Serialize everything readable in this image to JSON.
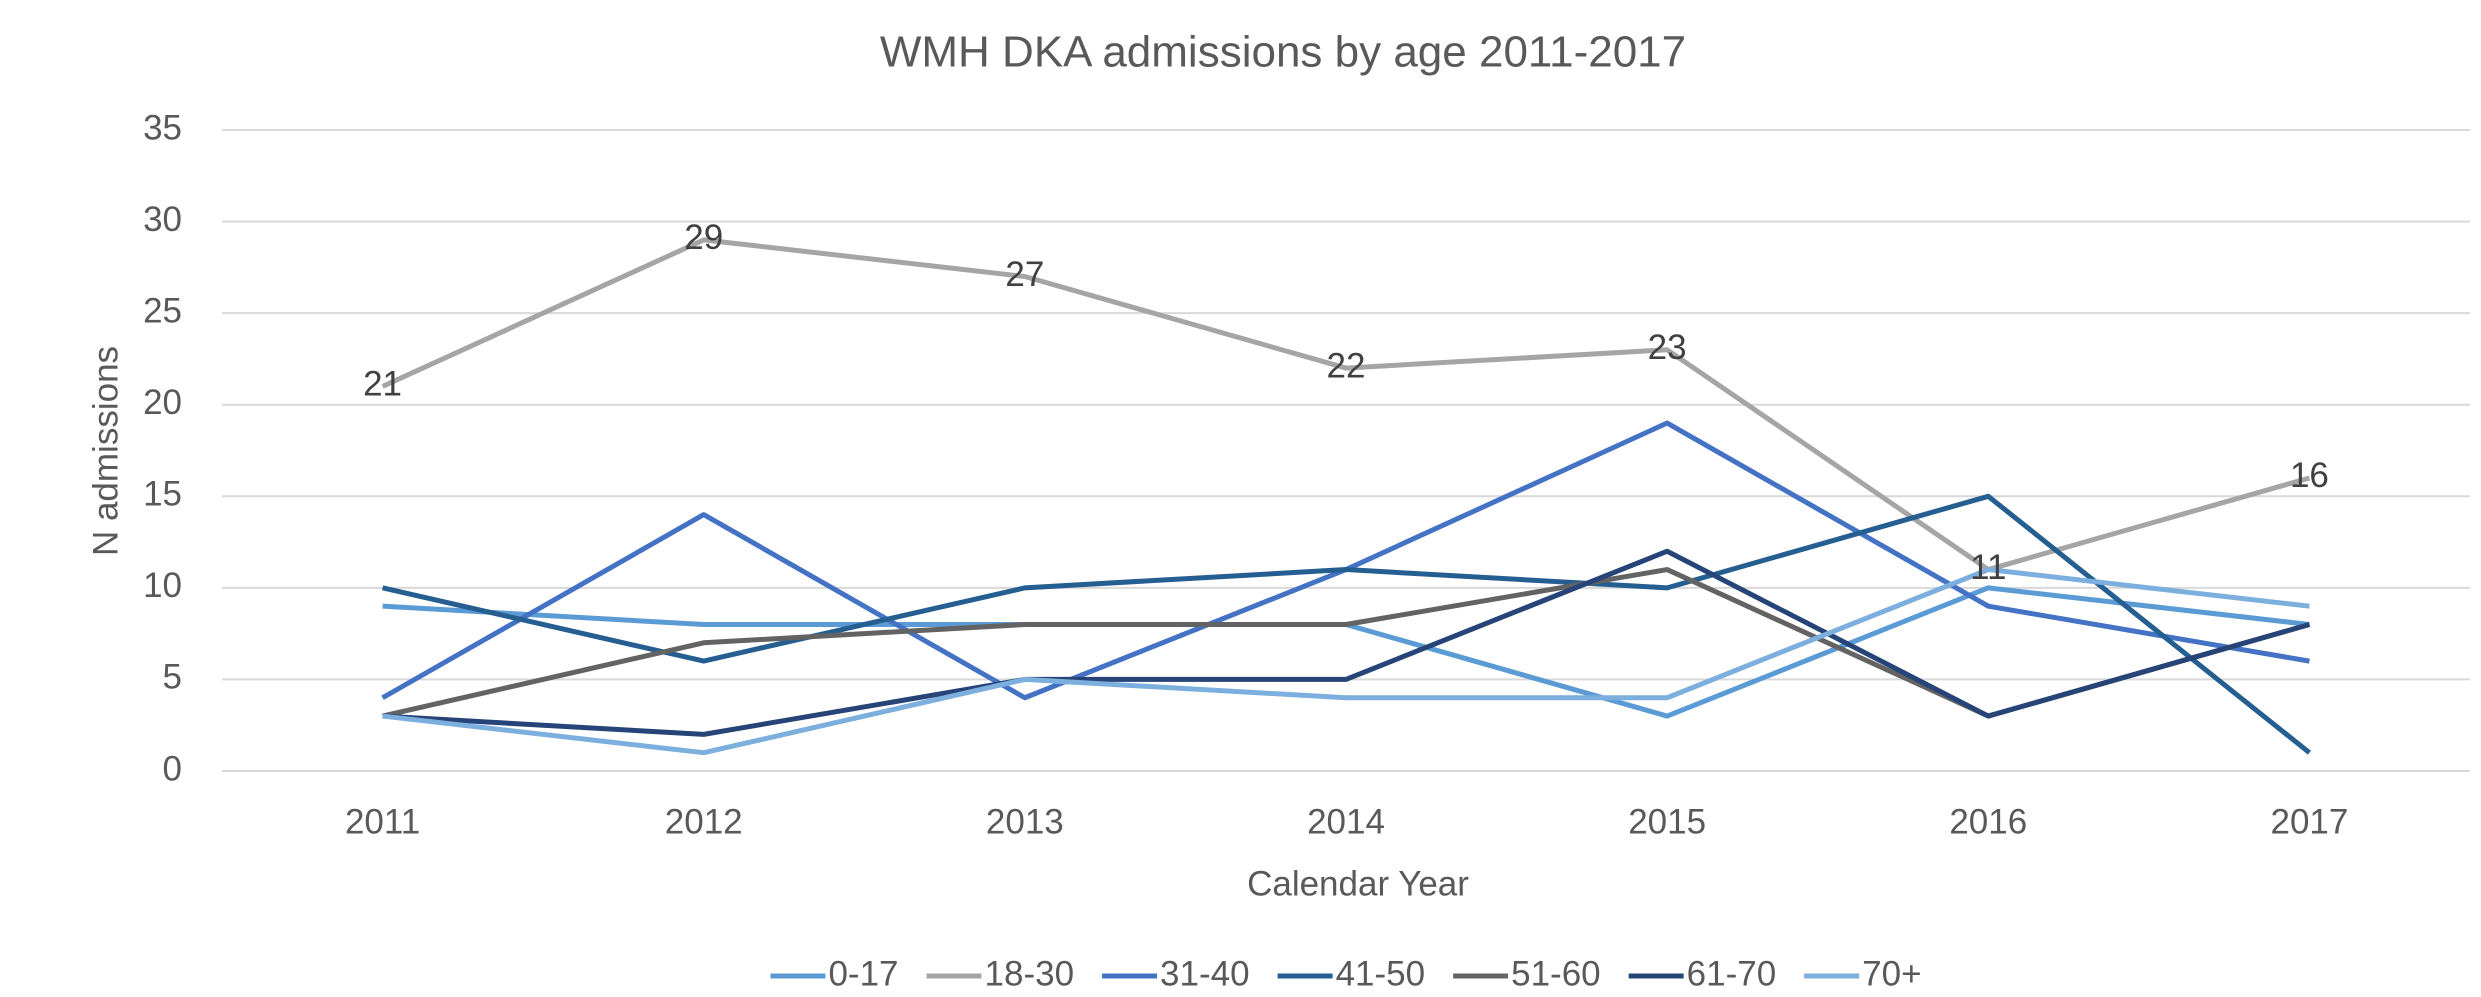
{
  "chart_data": {
    "type": "line",
    "title": "WMH DKA admissions by age 2011-2017",
    "x_label": "Calendar Year",
    "y_label": "N admissions",
    "categories": [
      "2011",
      "2012",
      "2013",
      "2014",
      "2015",
      "2016",
      "2017"
    ],
    "ylim": [
      0,
      35
    ],
    "yticks": [
      0,
      5,
      10,
      15,
      20,
      25,
      30,
      35
    ],
    "grid": true,
    "legend": "bottom",
    "series": [
      {
        "name": "0-17",
        "color": "#5b9bd5",
        "values": [
          9,
          8,
          8,
          8,
          3,
          10,
          8
        ]
      },
      {
        "name": "18-30",
        "color": "#a5a5a5",
        "values": [
          21,
          29,
          27,
          22,
          23,
          11,
          16
        ],
        "data_labels": true
      },
      {
        "name": "31-40",
        "color": "#4472c4",
        "values": [
          4,
          14,
          4,
          11,
          19,
          9,
          6
        ]
      },
      {
        "name": "41-50",
        "color": "#255e91",
        "values": [
          10,
          6,
          10,
          11,
          10,
          15,
          1
        ]
      },
      {
        "name": "51-60",
        "color": "#636363",
        "values": [
          3,
          7,
          8,
          8,
          11,
          3,
          8
        ]
      },
      {
        "name": "61-70",
        "color": "#264478",
        "values": [
          3,
          2,
          5,
          5,
          12,
          3,
          8
        ]
      },
      {
        "name": "70+",
        "color": "#7cafdd",
        "values": [
          3,
          1,
          5,
          4,
          4,
          11,
          9
        ]
      }
    ]
  }
}
